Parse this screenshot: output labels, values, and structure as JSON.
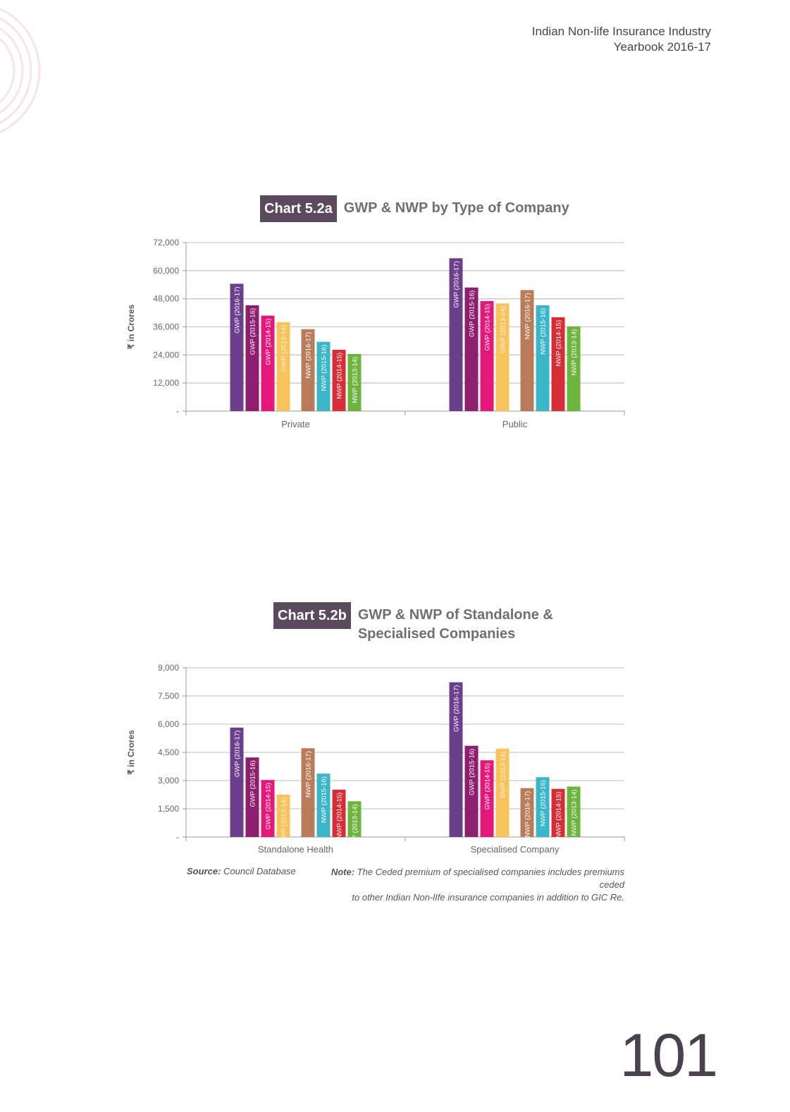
{
  "header": {
    "line1": "Indian Non-life Insurance Industry",
    "line2": "Yearbook 2016-17"
  },
  "page_number": "101",
  "footnote": {
    "source_label": "Source:",
    "source_text": "Council Database",
    "note_label": "Note:",
    "note_line1": "The Ceded premium of specialised companies includes premiums ceded",
    "note_line2": "to other Indian Non-lIfe insurance companies in addition to GIC Re."
  },
  "colors": {
    "badge": "#5b4a5d",
    "GWP (2016-17)": "#6c3f8c",
    "GWP (2015-16)": "#8e1f6e",
    "GWP (2014-15)": "#e6177a",
    "GWP (2013-14)": "#f8c35a",
    "NWP (2016-17)": "#b97c5b",
    "NWP (2015-16)": "#3bb6c8",
    "NWP (2014-15)": "#d82d36",
    "NWP (2013-14)": "#6cb43c"
  },
  "chart_data": [
    {
      "type": "bar",
      "badge": "Chart 5.2a",
      "title": "GWP & NWP by Type of Company",
      "ylabel": "₹ in Crores",
      "ylim": [
        0,
        72000
      ],
      "yticks": [
        0,
        12000,
        24000,
        36000,
        48000,
        60000,
        72000
      ],
      "ytick_labels": [
        "-",
        "12,000",
        "24,000",
        "36,000",
        "48,000",
        "60,000",
        "72,000"
      ],
      "categories": [
        "Private",
        "Public"
      ],
      "grid": true,
      "series": [
        {
          "name": "GWP (2016-17)",
          "values": [
            54400,
            65300
          ]
        },
        {
          "name": "GWP (2015-16)",
          "values": [
            45200,
            52800
          ]
        },
        {
          "name": "GWP (2014-15)",
          "values": [
            40800,
            47000
          ]
        },
        {
          "name": "GWP (2013-14)",
          "values": [
            38000,
            46000
          ]
        },
        {
          "name": "NWP (2016-17)",
          "values": [
            35000,
            51700
          ]
        },
        {
          "name": "NWP (2015-16)",
          "values": [
            29600,
            45200
          ]
        },
        {
          "name": "NWP (2014-15)",
          "values": [
            26200,
            40100
          ]
        },
        {
          "name": "NWP (2013-14)",
          "values": [
            24400,
            36200
          ]
        }
      ]
    },
    {
      "type": "bar",
      "badge": "Chart 5.2b",
      "title": "GWP & NWP of Standalone & Specialised Companies",
      "title_line1": "GWP & NWP of Standalone &",
      "title_line2": "Specialised Companies",
      "ylabel": "₹ in Crores",
      "ylim": [
        0,
        9000
      ],
      "yticks": [
        0,
        1500,
        3000,
        4500,
        6000,
        7500,
        9000
      ],
      "ytick_labels": [
        "-",
        "1,500",
        "3,000",
        "4,500",
        "6,000",
        "7,500",
        "9,000"
      ],
      "categories": [
        "Standalone Health",
        "Specialised Company"
      ],
      "grid": true,
      "series": [
        {
          "name": "GWP (2016-17)",
          "values": [
            5820,
            8230
          ]
        },
        {
          "name": "GWP (2015-16)",
          "values": [
            4230,
            4850
          ]
        },
        {
          "name": "GWP (2014-15)",
          "values": [
            3030,
            4080
          ]
        },
        {
          "name": "GWP (2013-14)",
          "values": [
            2250,
            4700
          ]
        },
        {
          "name": "NWP (2016-17)",
          "values": [
            4720,
            2600
          ]
        },
        {
          "name": "NWP (2015-16)",
          "values": [
            3370,
            3180
          ]
        },
        {
          "name": "NWP (2014-15)",
          "values": [
            2520,
            2560
          ]
        },
        {
          "name": "NWP (2013-14)",
          "values": [
            1900,
            2680
          ]
        }
      ]
    }
  ]
}
